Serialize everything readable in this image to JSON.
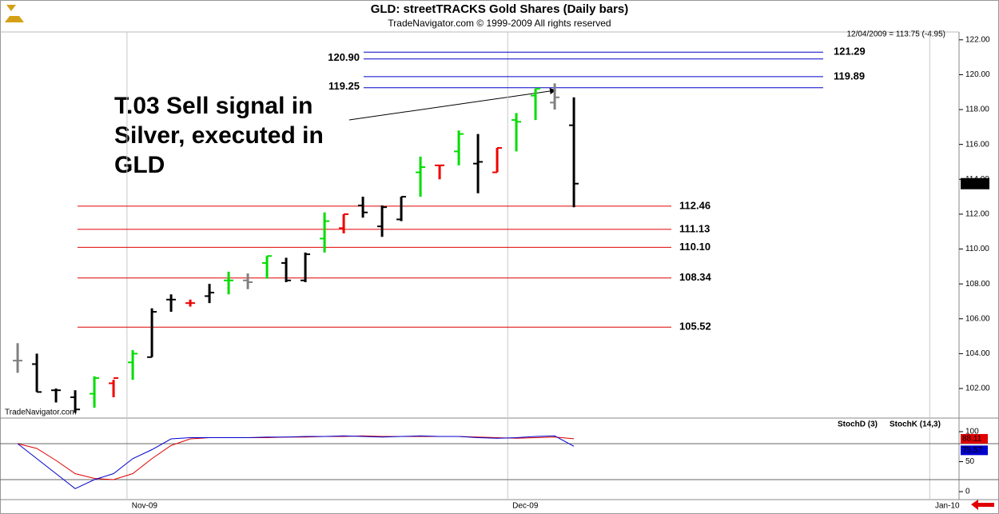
{
  "chart_data": [
    {
      "type": "ohlc",
      "title": "GLD:  streetTRACKS Gold Shares  (Daily bars)",
      "subtitle": "TradeNavigator.com © 1999-2009 All rights reserved",
      "status": "12/04/2009 = 113.75 (-4.95)",
      "watermark": "TradeNavigator.com",
      "annotation": [
        "T.03 Sell signal in",
        "Silver, executed in",
        "GLD"
      ],
      "last_price": 113.75,
      "open": [
        103.6,
        103.4,
        101.9,
        101.5,
        101.7,
        102.3,
        103.5,
        103.8,
        107.1,
        106.9,
        107.3,
        108.2,
        108.2,
        109.2,
        109.2,
        108.2,
        110.6,
        111.2,
        112.5,
        111.3,
        111.7,
        114.4,
        114.8,
        115.6,
        114.9,
        114.4,
        117.4,
        118.8,
        118.4,
        117.1
      ],
      "high": [
        104.6,
        104.0,
        102.0,
        101.9,
        102.7,
        102.5,
        104.2,
        106.6,
        107.4,
        107.1,
        108.0,
        108.7,
        108.6,
        109.6,
        109.5,
        109.8,
        112.1,
        112.0,
        113.0,
        112.5,
        113.0,
        115.3,
        114.8,
        116.8,
        116.6,
        115.8,
        117.8,
        119.2,
        119.5,
        118.7
      ],
      "low": [
        102.9,
        101.8,
        101.2,
        100.6,
        100.9,
        101.5,
        102.5,
        103.8,
        106.4,
        106.7,
        106.9,
        107.4,
        107.7,
        108.3,
        108.1,
        108.1,
        109.8,
        110.9,
        111.8,
        110.7,
        111.6,
        113.0,
        114.0,
        114.8,
        113.2,
        114.4,
        115.6,
        117.4,
        118.0,
        112.4
      ],
      "close": [
        103.6,
        101.8,
        101.9,
        100.8,
        102.6,
        102.6,
        104.0,
        106.4,
        107.1,
        106.9,
        107.5,
        108.2,
        108.1,
        109.6,
        108.2,
        109.7,
        111.6,
        112.0,
        112.1,
        112.4,
        113.0,
        114.7,
        114.8,
        116.6,
        115.0,
        115.8,
        117.3,
        119.2,
        118.7,
        113.75
      ],
      "colors": [
        "#808080",
        "#000000",
        "#000000",
        "#000000",
        "#00dd00",
        "#ee0000",
        "#00dd00",
        "#000000",
        "#000000",
        "#ee0000",
        "#000000",
        "#00dd00",
        "#808080",
        "#00dd00",
        "#000000",
        "#000000",
        "#00dd00",
        "#ee0000",
        "#000000",
        "#000000",
        "#000000",
        "#00dd00",
        "#ee0000",
        "#00dd00",
        "#000000",
        "#ee0000",
        "#00dd00",
        "#00dd00",
        "#808080",
        "#000000"
      ],
      "xlim": [
        -0.92,
        49.08
      ],
      "ylim": [
        100.35,
        122.45
      ],
      "yticks": [
        {
          "value": 102,
          "label": "102.00"
        },
        {
          "value": 104,
          "label": "104.00"
        },
        {
          "value": 106,
          "label": "106.00"
        },
        {
          "value": 108,
          "label": "108.00"
        },
        {
          "value": 110,
          "label": "110.00"
        },
        {
          "value": 112,
          "label": "112.00"
        },
        {
          "value": 114,
          "label": "114.00"
        },
        {
          "value": 116,
          "label": "116.00"
        },
        {
          "value": 118,
          "label": "118.00"
        },
        {
          "value": 120,
          "label": "120.00"
        },
        {
          "value": 122,
          "label": "122.00"
        }
      ],
      "support_levels": {
        "color": "#e00000",
        "values": [
          112.46,
          111.13,
          110.1,
          108.34,
          105.52
        ],
        "value_labels": [
          "112.46",
          "111.13",
          "110.10",
          "108.34",
          "105.52"
        ]
      },
      "resistance_levels": {
        "color": "#0000cc",
        "values": [
          121.29,
          120.9,
          119.89,
          119.25
        ],
        "value_labels": [
          "121.29",
          "120.90",
          "119.89",
          "119.25"
        ],
        "label_sides": [
          "right",
          "left",
          "right",
          "left"
        ]
      }
    },
    {
      "type": "line",
      "series": [
        {
          "name": "StochD (3)",
          "color": "#e00000",
          "values": [
            80,
            72,
            52,
            30,
            22,
            20,
            30,
            55,
            77,
            88,
            90,
            90,
            90,
            90,
            91,
            91,
            92,
            92,
            93,
            92,
            92,
            92,
            92,
            92,
            91,
            90,
            89,
            90,
            91,
            88.11
          ]
        },
        {
          "name": "StochK (14,3)",
          "color": "#0000cc",
          "values": [
            80,
            55,
            30,
            5,
            20,
            30,
            55,
            70,
            88,
            90,
            90,
            90,
            90,
            91,
            91,
            92,
            92,
            93,
            92,
            91,
            92,
            93,
            92,
            92,
            90,
            89,
            90,
            92,
            93,
            75.57
          ]
        }
      ],
      "xlim": [
        -0.92,
        49.08
      ],
      "xticks": [
        {
          "value": 5.7,
          "label": "Nov-09"
        },
        {
          "value": 25.55,
          "label": "Dec-09"
        },
        {
          "value": 47.55,
          "label": "Jan-10"
        }
      ],
      "ylim": [
        -13.3,
        120
      ],
      "yticks": [
        0,
        50,
        100
      ],
      "reference_lines": [
        20,
        80
      ]
    }
  ]
}
